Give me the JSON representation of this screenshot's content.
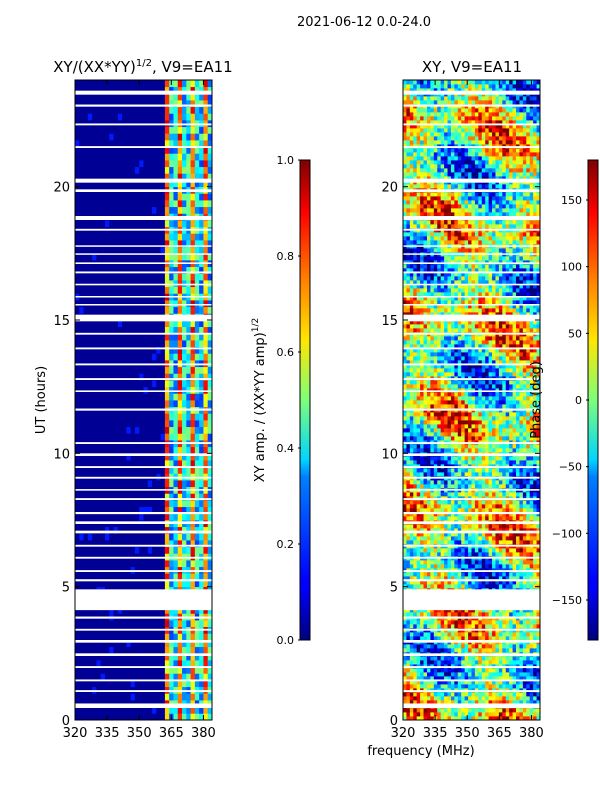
{
  "figure": {
    "suptitle": "2021-06-12 0.0-24.0"
  },
  "chart_data": [
    {
      "type": "heatmap",
      "id": "left",
      "title": "XY/(XX*YY)^1/2, V9=EA11",
      "title_main": "XY/(XX*YY)",
      "title_exp": "1/2",
      "title_tail": ", V9=EA11",
      "xlabel": "",
      "ylabel": "UT (hours)",
      "xlim": [
        320,
        384
      ],
      "ylim": [
        0,
        24
      ],
      "xticks": [
        320,
        335,
        350,
        365,
        380
      ],
      "xtick_labels": [
        "320",
        "335",
        "350",
        "365",
        "380"
      ],
      "yticks": [
        0,
        5,
        10,
        15,
        20
      ],
      "ytick_labels": [
        "0",
        "5",
        "10",
        "15",
        "20"
      ],
      "colormap": "jet",
      "value_note": "normalized XY amplitude; near 0 below ~361 MHz, 0.3-0.8 above ~361 MHz",
      "colorbar": {
        "label_main": "XY amp. / (XX*YY amp)",
        "label_exp": "1/2",
        "range": [
          0.0,
          1.0
        ],
        "ticks": [
          0.0,
          0.2,
          0.4,
          0.6,
          0.8,
          1.0
        ],
        "tick_labels": [
          "0.0",
          "0.2",
          "0.4",
          "0.6",
          "0.8",
          "1.0"
        ]
      }
    },
    {
      "type": "heatmap",
      "id": "right",
      "title": "XY, V9=EA11",
      "xlabel": "frequency (MHz)",
      "ylabel": "",
      "xlim": [
        320,
        384
      ],
      "ylim": [
        0,
        24
      ],
      "xticks": [
        320,
        335,
        350,
        365,
        380
      ],
      "xtick_labels": [
        "320",
        "335",
        "350",
        "365",
        "380"
      ],
      "yticks": [
        0,
        5,
        10,
        15,
        20
      ],
      "ytick_labels": [
        "0",
        "5",
        "10",
        "15",
        "20"
      ],
      "colormap": "jet",
      "value_note": "XY phase in degrees, spanning full -180 to 180 range",
      "colorbar": {
        "label": "Phase (deg)",
        "range": [
          -180,
          180
        ],
        "ticks": [
          -150,
          -100,
          -50,
          0,
          50,
          100,
          150
        ],
        "tick_labels": [
          "−150",
          "−100",
          "−50",
          "0",
          "50",
          "100",
          "150"
        ]
      }
    }
  ],
  "flagged_gaps_hours": [
    [
      0.45,
      0.62
    ],
    [
      1.05,
      1.12
    ],
    [
      1.45,
      1.52
    ],
    [
      1.95,
      2.02
    ],
    [
      2.4,
      2.5
    ],
    [
      2.9,
      3.0
    ],
    [
      3.35,
      3.42
    ],
    [
      3.8,
      3.88
    ],
    [
      4.12,
      4.9
    ],
    [
      5.2,
      5.28
    ],
    [
      5.55,
      5.62
    ],
    [
      6.05,
      6.12
    ],
    [
      6.5,
      6.57
    ],
    [
      7.0,
      7.1
    ],
    [
      7.35,
      7.45
    ],
    [
      7.72,
      7.8
    ],
    [
      8.25,
      8.32
    ],
    [
      8.6,
      8.66
    ],
    [
      9.05,
      9.12
    ],
    [
      9.45,
      9.52
    ],
    [
      9.9,
      10.0
    ],
    [
      10.35,
      10.42
    ],
    [
      11.6,
      11.68
    ],
    [
      12.3,
      12.36
    ],
    [
      12.75,
      12.82
    ],
    [
      13.3,
      13.37
    ],
    [
      13.9,
      13.97
    ],
    [
      14.45,
      14.52
    ],
    [
      14.95,
      15.2
    ],
    [
      15.55,
      15.6
    ],
    [
      15.85,
      15.9
    ],
    [
      16.3,
      16.36
    ],
    [
      16.75,
      16.82
    ],
    [
      17.1,
      17.16
    ],
    [
      17.45,
      17.5
    ],
    [
      17.75,
      17.8
    ],
    [
      18.35,
      18.42
    ],
    [
      18.75,
      18.9
    ],
    [
      19.8,
      19.9
    ],
    [
      20.15,
      20.3
    ],
    [
      21.45,
      21.52
    ],
    [
      22.3,
      22.37
    ],
    [
      23.0,
      23.08
    ],
    [
      23.45,
      23.6
    ]
  ]
}
